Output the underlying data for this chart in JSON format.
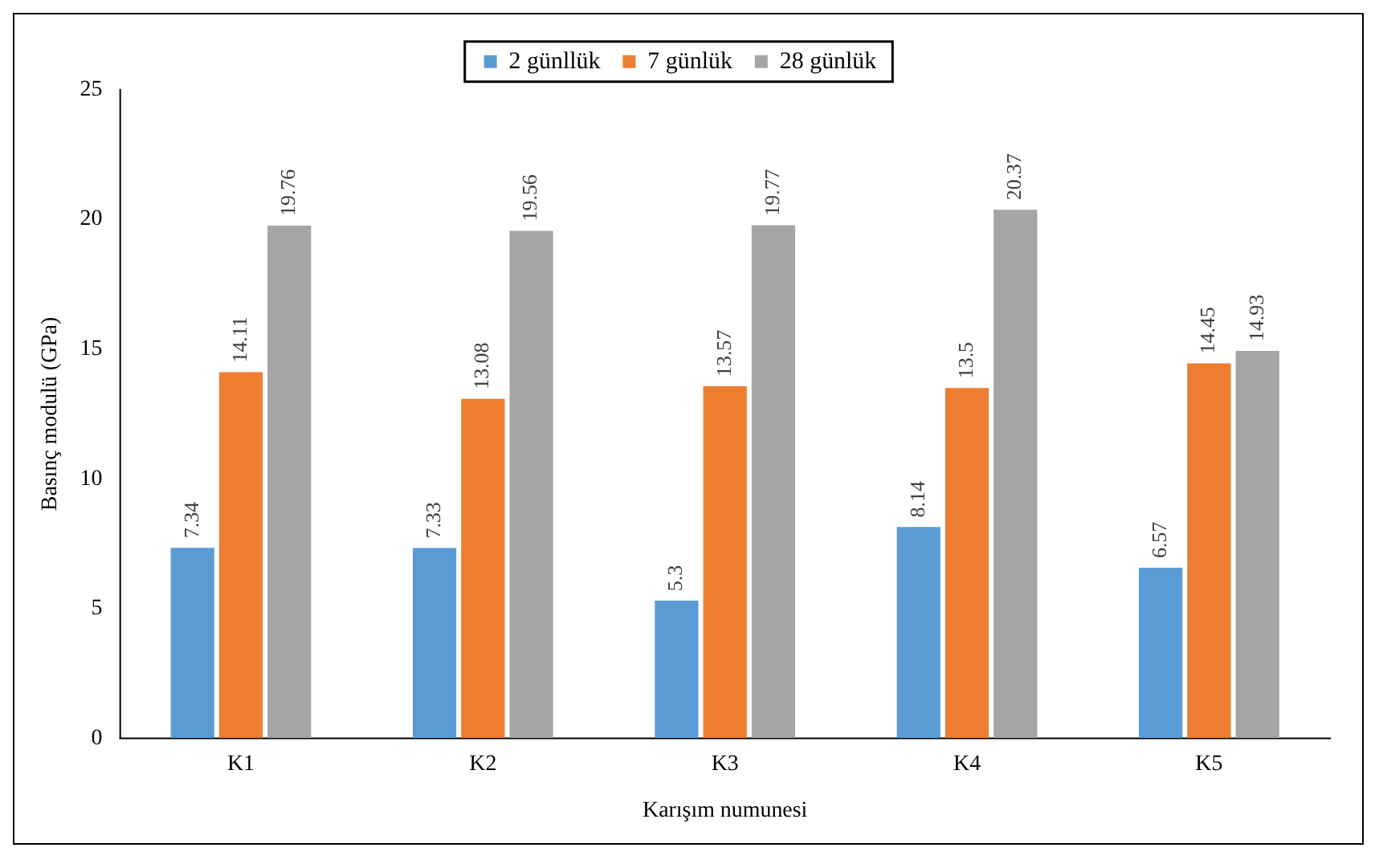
{
  "chart_data": {
    "type": "bar",
    "xlabel": "Karışım numunesi",
    "ylabel": "Basınç modulü (GPa)",
    "categories": [
      "K1",
      "K2",
      "K3",
      "K4",
      "K5"
    ],
    "series": [
      {
        "name": "2 günllük",
        "color": "#5b9bd5",
        "values": [
          7.34,
          7.33,
          5.3,
          8.14,
          6.57
        ]
      },
      {
        "name": "7 günlük",
        "color": "#ed7d31",
        "values": [
          14.11,
          13.08,
          13.57,
          13.5,
          14.45
        ]
      },
      {
        "name": "28 günlük",
        "color": "#a5a5a5",
        "values": [
          19.76,
          19.56,
          19.77,
          20.37,
          14.93
        ]
      }
    ],
    "ylim": [
      0,
      25
    ],
    "yticks": [
      0,
      5,
      10,
      15,
      20,
      25
    ],
    "grid": false,
    "legend": "top",
    "data_labels": true
  }
}
